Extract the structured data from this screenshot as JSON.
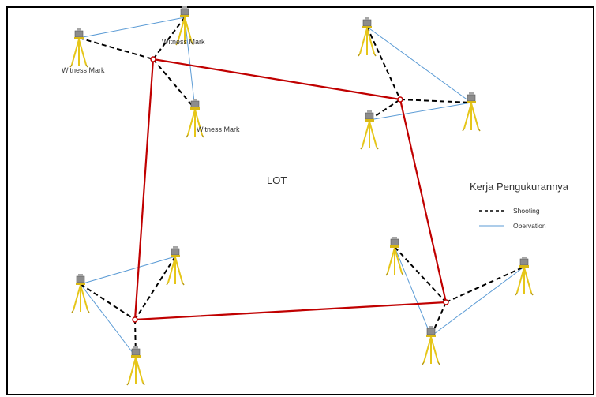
{
  "diagram": {
    "center_label": "LOT",
    "witness_mark_label": "Witness Mark",
    "legend": {
      "title": "Kerja Pengukurannya",
      "items": [
        {
          "label": "Shooting",
          "style": "dashed",
          "color": "#000000"
        },
        {
          "label": "Obervation",
          "style": "solid",
          "color": "#5b9bd5"
        }
      ]
    },
    "colors": {
      "lot_boundary": "#c00000",
      "shooting": "#000000",
      "observation": "#5b9bd5",
      "tripod": "#e6c619",
      "instrument": "#8c8c8c"
    }
  }
}
